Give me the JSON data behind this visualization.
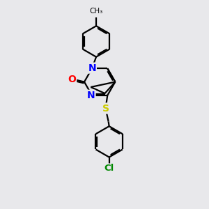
{
  "bg_color": "#e8e8eb",
  "bond_color": "#000000",
  "atom_colors": {
    "N": "#0000ff",
    "O": "#ff0000",
    "S": "#cccc00",
    "Cl": "#008800",
    "C": "#000000"
  },
  "bond_width": 1.6,
  "figsize": [
    3.0,
    3.0
  ],
  "dpi": 100
}
